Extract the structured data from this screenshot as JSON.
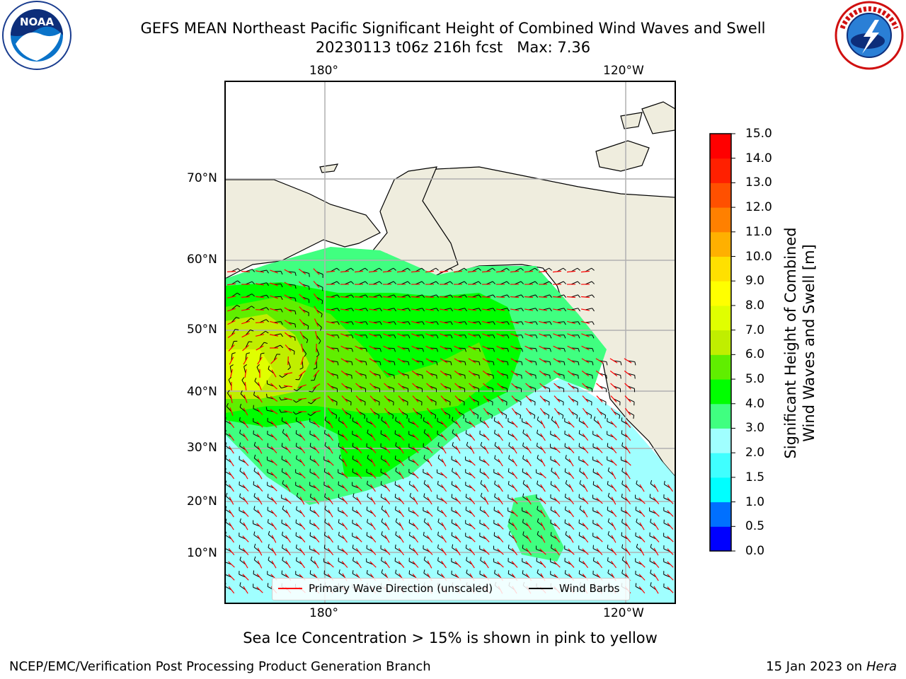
{
  "title": {
    "line1": "GEFS MEAN Northeast Pacific Significant Height of Combined Wind Waves and Swell",
    "line2": "20230113 t06z 216h fcst   Max: 7.36"
  },
  "logos": {
    "left": "noaa-logo",
    "right": "nws-logo"
  },
  "map": {
    "lon_labels_top": [
      "180°",
      "120°W"
    ],
    "lon_labels_bottom": [
      "180°",
      "120°W"
    ],
    "lat_labels": [
      "70°N",
      "60°N",
      "50°N",
      "40°N",
      "30°N",
      "20°N",
      "10°N"
    ],
    "legend": [
      {
        "label": "Primary Wave Direction (unscaled)",
        "color": "#ff0000"
      },
      {
        "label": "Wind Barbs",
        "color": "#000000"
      }
    ],
    "land_color": "#efedde",
    "grid_color": "#b0b0b0"
  },
  "colorbar": {
    "label_line1": "Significant Height of Combined",
    "label_line2": "Wind Waves and Swell [m]",
    "ticks": [
      "15.0",
      "14.0",
      "13.0",
      "12.0",
      "11.0",
      "10.0",
      "9.0",
      "8.0",
      "7.0",
      "6.0",
      "5.0",
      "4.0",
      "3.0",
      "2.0",
      "1.5",
      "1.0",
      "0.5",
      "0.0"
    ],
    "colors_bottom_to_top": [
      "#0000ff",
      "#0070ff",
      "#00ffff",
      "#40ffff",
      "#a0ffff",
      "#40ff80",
      "#00ff00",
      "#60ee00",
      "#c0ee00",
      "#e0ff00",
      "#ffff00",
      "#ffe000",
      "#ffb000",
      "#ff8000",
      "#ff5000",
      "#ff2000",
      "#ff0000"
    ]
  },
  "footer": {
    "note": "Sea Ice Concentration > 15% is shown in pink to yellow",
    "credit": "NCEP/EMC/Verification Post Processing Product Generation Branch",
    "date": "15 Jan 2023 on",
    "machine": "Hera"
  }
}
